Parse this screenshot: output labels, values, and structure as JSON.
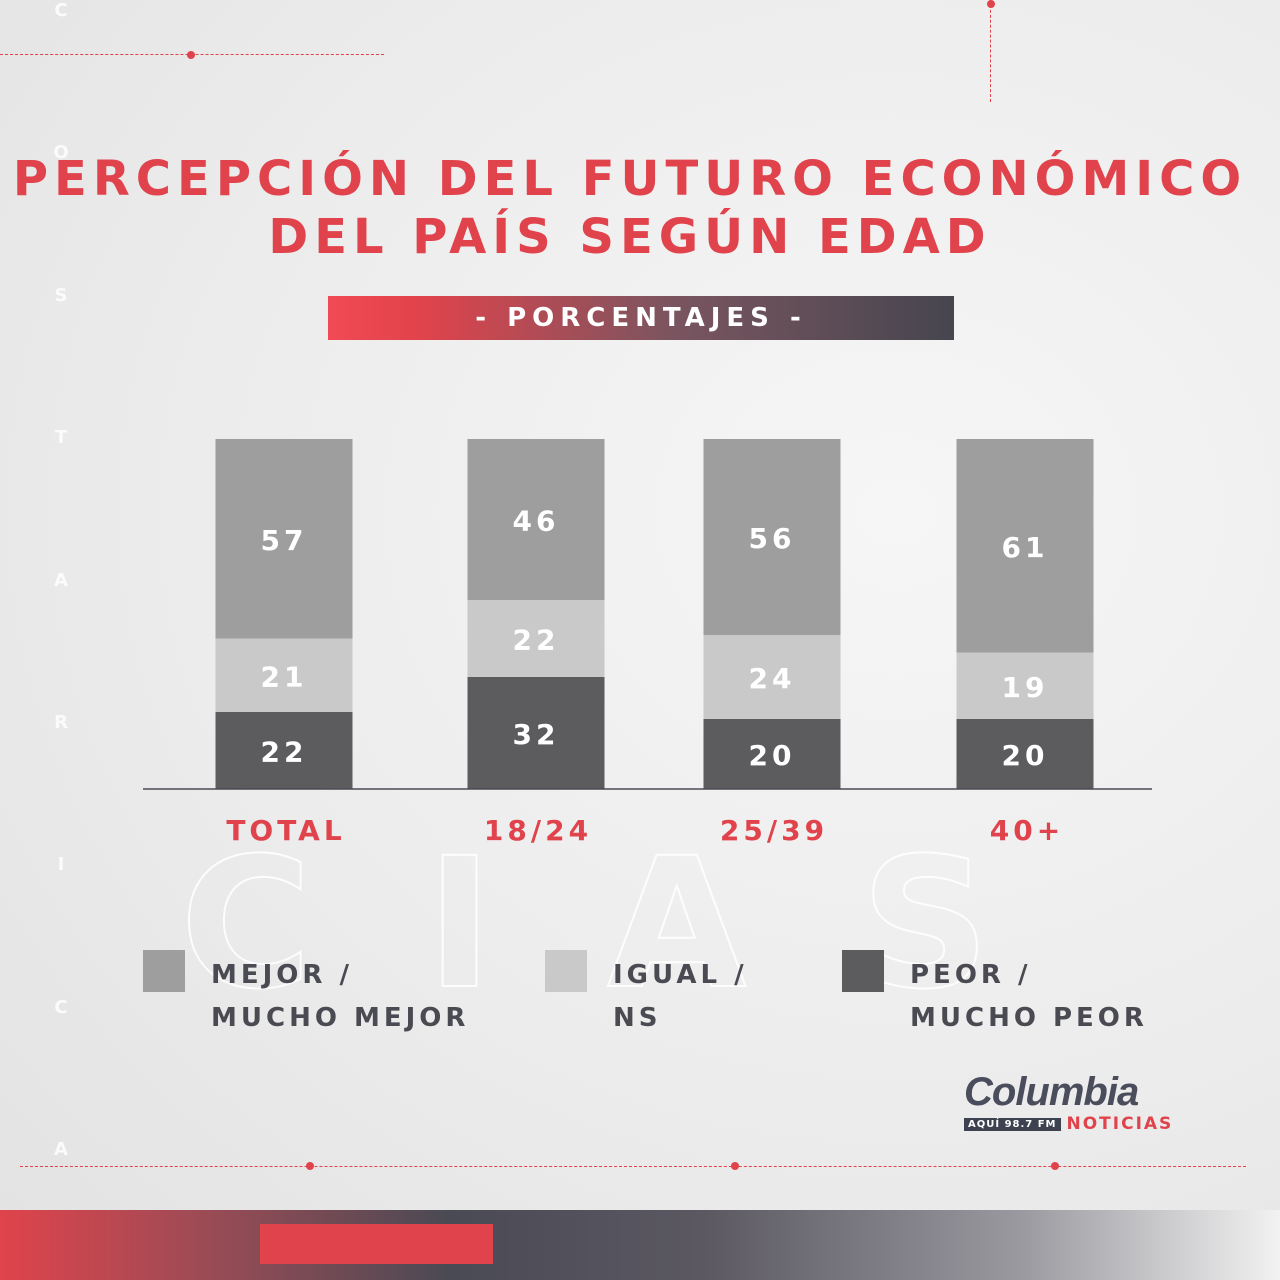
{
  "title": "PERCEPCIÓN DEL FUTURO ECONÓMICO\nDEL PAÍS SEGÚN EDAD",
  "subtitle": "- PORCENTAJES -",
  "watermark_vertical": [
    "C",
    "O",
    "S",
    "T",
    "A",
    "R",
    "I",
    "C",
    "A"
  ],
  "watermark_letters": [
    "C",
    "I",
    "A",
    "S"
  ],
  "colors": {
    "accent": "#e0434b",
    "mejor": "#9e9e9e",
    "igual": "#c9c9c9",
    "peor": "#5c5c5e",
    "bar_label": "#ffffff",
    "category_label": "#e0434b"
  },
  "chart_data": {
    "type": "bar",
    "stacked": true,
    "orientation": "vertical",
    "title": "PERCEPCIÓN DEL FUTURO ECONÓMICO DEL PAÍS SEGÚN EDAD",
    "subtitle": "- PORCENTAJES -",
    "categories": [
      "TOTAL",
      "18/24",
      "25/39",
      "40+"
    ],
    "series": [
      {
        "name": "PEOR / MUCHO PEOR",
        "color": "#5c5c5e",
        "values": [
          22,
          32,
          20,
          20
        ]
      },
      {
        "name": "IGUAL / NS",
        "color": "#c9c9c9",
        "values": [
          21,
          22,
          24,
          19
        ]
      },
      {
        "name": "MEJOR / MUCHO MEJOR",
        "color": "#9e9e9e",
        "values": [
          57,
          46,
          56,
          61
        ]
      }
    ],
    "ylim": [
      0,
      100
    ],
    "grid": false,
    "legend_position": "bottom",
    "data_labels": true
  },
  "legend": [
    {
      "label": "MEJOR /\nMUCHO MEJOR",
      "color": "#9e9e9e"
    },
    {
      "label": "IGUAL /\nNS",
      "color": "#c9c9c9"
    },
    {
      "label": "PEOR /\nMUCHO PEOR",
      "color": "#5c5c5e"
    }
  ],
  "logo": {
    "name": "Columbia",
    "tag": "AQUÍ 98.7 FM",
    "sub": "NOTICIAS"
  }
}
